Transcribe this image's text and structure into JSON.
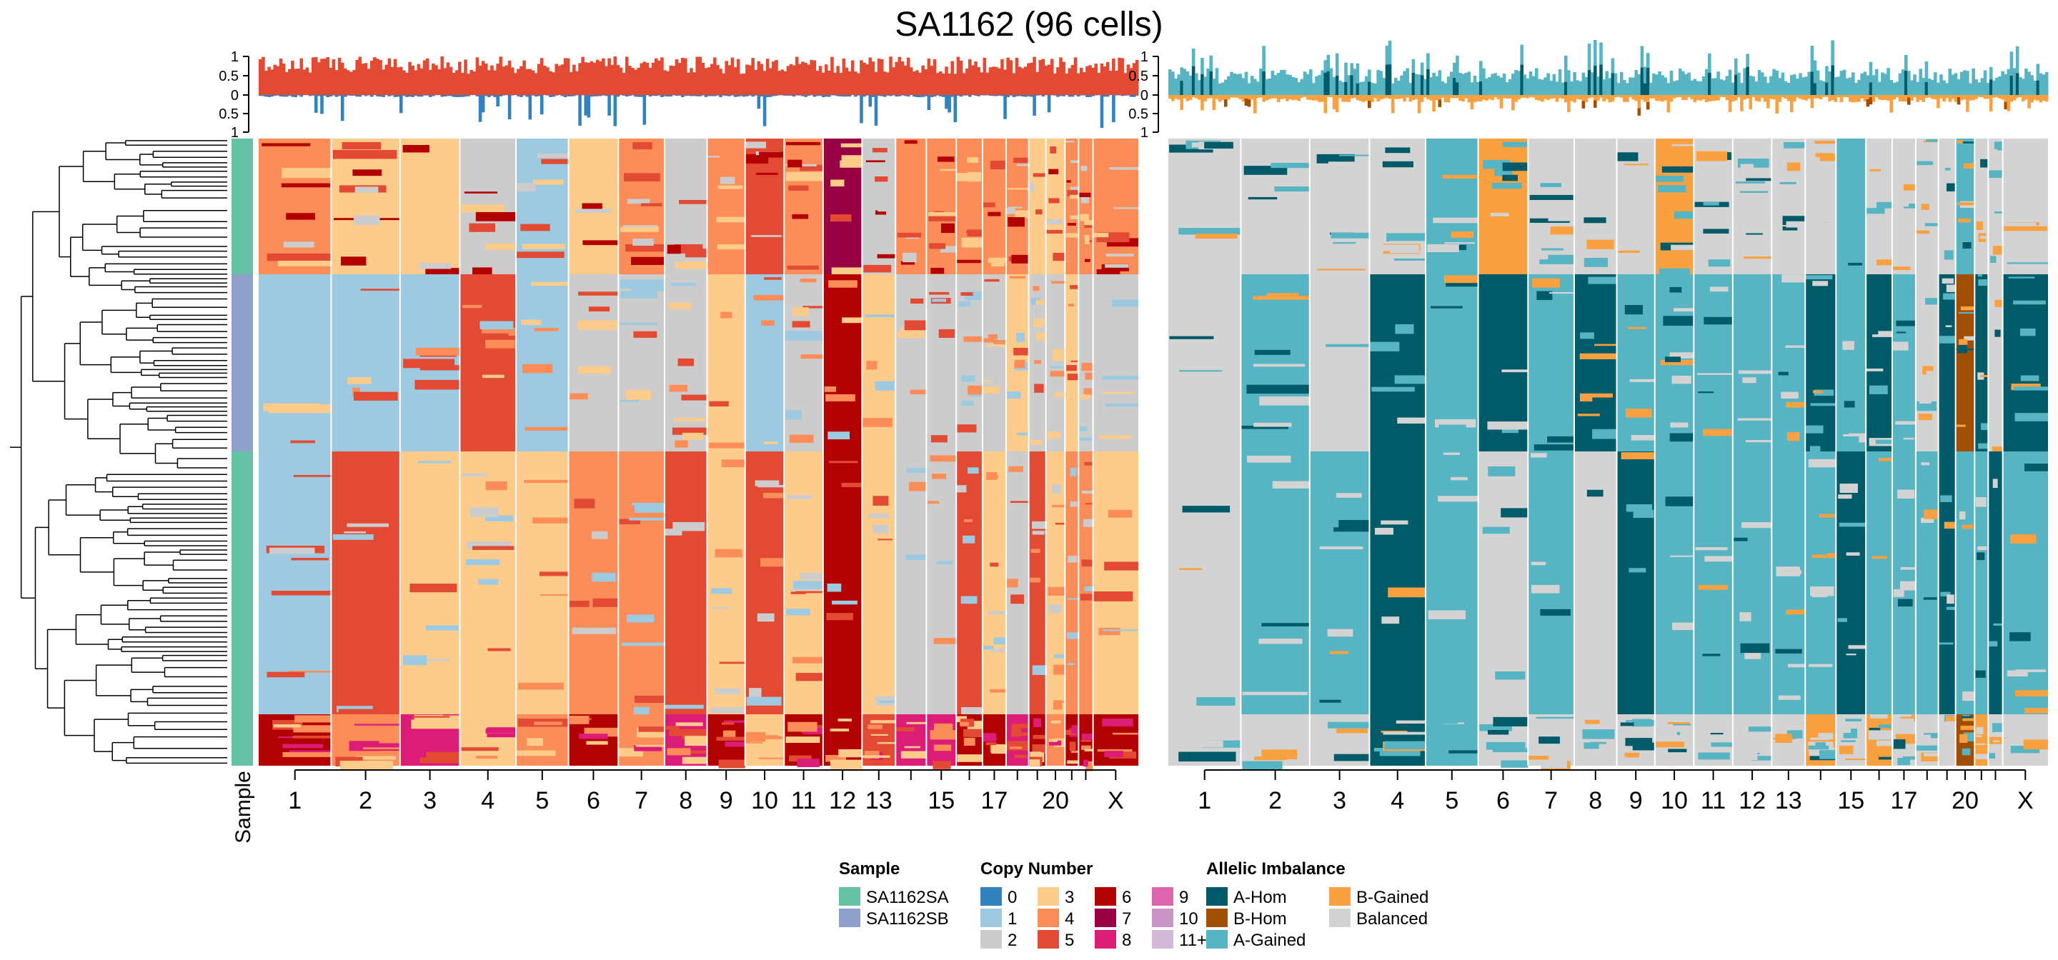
{
  "title": "SA1162 (96 cells)",
  "sample_axis_label": "Sample",
  "chart_data": [
    {
      "type": "heatmap",
      "name": "Copy Number",
      "chromosomes": [
        {
          "label": "1",
          "w": 0.08
        },
        {
          "label": "2",
          "w": 0.076
        },
        {
          "label": "3",
          "w": 0.066
        },
        {
          "label": "4",
          "w": 0.062
        },
        {
          "label": "5",
          "w": 0.058
        },
        {
          "label": "6",
          "w": 0.055
        },
        {
          "label": "7",
          "w": 0.051
        },
        {
          "label": "8",
          "w": 0.047
        },
        {
          "label": "9",
          "w": 0.042
        },
        {
          "label": "10",
          "w": 0.043
        },
        {
          "label": "11",
          "w": 0.043
        },
        {
          "label": "12",
          "w": 0.043
        },
        {
          "label": "13",
          "w": 0.037
        },
        {
          "label": "",
          "w": 0.034
        },
        {
          "label": "15",
          "w": 0.033
        },
        {
          "label": "",
          "w": 0.029
        },
        {
          "label": "17",
          "w": 0.026
        },
        {
          "label": "",
          "w": 0.025
        },
        {
          "label": "",
          "w": 0.019
        },
        {
          "label": "20",
          "w": 0.021
        },
        {
          "label": "",
          "w": 0.015
        },
        {
          "label": "",
          "w": 0.016
        },
        {
          "label": "X",
          "w": 0.05
        }
      ],
      "gain_loss_track": {
        "yticks_top": [
          "1",
          "0.5",
          "0"
        ],
        "yticks_bottom": [
          "0.5",
          "1"
        ]
      }
    },
    {
      "type": "heatmap",
      "name": "Allelic Imbalance",
      "chromosomes_same_as_previous": true,
      "state_track": {
        "yticks_top": [
          "1",
          "0.5",
          "0"
        ],
        "yticks_bottom": [
          "0.5",
          "1"
        ]
      }
    }
  ],
  "legend": {
    "sample": {
      "title": "Sample",
      "items": [
        {
          "label": "SA1162SA",
          "color": "#66C2A5"
        },
        {
          "label": "SA1162SB",
          "color": "#8DA0CB"
        }
      ]
    },
    "copy_number": {
      "title": "Copy Number",
      "items": [
        {
          "label": "0",
          "color": "#3182BD"
        },
        {
          "label": "1",
          "color": "#9ECAE1"
        },
        {
          "label": "2",
          "color": "#CCCCCC"
        },
        {
          "label": "3",
          "color": "#FDCC8A"
        },
        {
          "label": "4",
          "color": "#FC8D59"
        },
        {
          "label": "5",
          "color": "#E34A33"
        },
        {
          "label": "6",
          "color": "#B30000"
        },
        {
          "label": "7",
          "color": "#980043"
        },
        {
          "label": "8",
          "color": "#DD1C77"
        },
        {
          "label": "9",
          "color": "#DF65B0"
        },
        {
          "label": "10",
          "color": "#C994C7"
        },
        {
          "label": "11+",
          "color": "#D4B9DA"
        }
      ]
    },
    "allelic_imbalance": {
      "title": "Allelic Imbalance",
      "items": [
        {
          "label": "A-Hom",
          "color": "#005A68"
        },
        {
          "label": "B-Hom",
          "color": "#A04F00"
        },
        {
          "label": "A-Gained",
          "color": "#56B4C3"
        },
        {
          "label": "B-Gained",
          "color": "#F9A040"
        },
        {
          "label": "Balanced",
          "color": "#D3D3D3"
        }
      ]
    }
  }
}
